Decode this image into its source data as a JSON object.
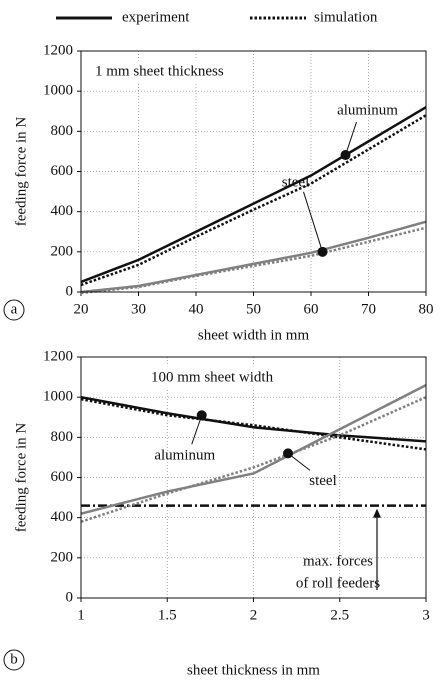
{
  "legend": [
    {
      "label": "experiment",
      "style": "solid"
    },
    {
      "label": "simulation",
      "style": "dotted"
    }
  ],
  "chart_data": [
    {
      "type": "line",
      "panel": "a",
      "note": "1 mm sheet thickness",
      "xlabel": "sheet width in mm",
      "ylabel": "feeding force in N",
      "x": [
        20,
        30,
        40,
        50,
        60,
        70,
        80
      ],
      "series": [
        {
          "color": "#111111",
          "style": "solid",
          "values": [
            50,
            160,
            300,
            440,
            580,
            750,
            920
          ]
        },
        {
          "color": "#111111",
          "style": "dotted",
          "values": [
            35,
            135,
            275,
            410,
            540,
            710,
            880
          ]
        },
        {
          "color": "#808080",
          "style": "solid",
          "values": [
            0,
            30,
            85,
            140,
            195,
            270,
            350
          ]
        },
        {
          "color": "#808080",
          "style": "dotted",
          "values": [
            -5,
            25,
            80,
            130,
            180,
            250,
            320
          ]
        }
      ],
      "annotations": [
        {
          "text": "aluminum",
          "x": 66,
          "y": 682
        },
        {
          "text": "steel",
          "x": 62,
          "y": 200
        }
      ],
      "xlim": [
        20,
        80
      ],
      "xticks": [
        20,
        30,
        40,
        50,
        60,
        70,
        80
      ],
      "ylim": [
        0,
        1200
      ],
      "yticks": [
        0,
        200,
        400,
        600,
        800,
        1000,
        1200
      ],
      "grid": true
    },
    {
      "type": "line",
      "panel": "b",
      "note": "100 mm sheet width",
      "xlabel": "sheet thickness in mm",
      "ylabel": "feeding force in N",
      "x": [
        1,
        1.5,
        2,
        2.5,
        3
      ],
      "series": [
        {
          "color": "#111111",
          "style": "solid",
          "values": [
            1000,
            920,
            850,
            810,
            780
          ]
        },
        {
          "color": "#111111",
          "style": "dotted",
          "values": [
            990,
            910,
            860,
            800,
            740
          ]
        },
        {
          "color": "#808080",
          "style": "solid",
          "values": [
            420,
            530,
            620,
            840,
            1060
          ]
        },
        {
          "color": "#808080",
          "style": "dotted",
          "values": [
            380,
            520,
            650,
            810,
            1000
          ]
        }
      ],
      "annotations": [
        {
          "text": "aluminum",
          "x": 1.7,
          "y": 910
        },
        {
          "text": "steel",
          "x": 2.2,
          "y": 720
        }
      ],
      "hline": {
        "value": 460,
        "style": "dashdot",
        "color": "#111111",
        "label": [
          "max. forces",
          "of roll feeders"
        ]
      },
      "xlim": [
        1,
        3
      ],
      "xticks": [
        1,
        1.5,
        2,
        2.5,
        3
      ],
      "ylim": [
        0,
        1200
      ],
      "yticks": [
        0,
        200,
        400,
        600,
        800,
        1000,
        1200
      ],
      "grid": true
    }
  ]
}
